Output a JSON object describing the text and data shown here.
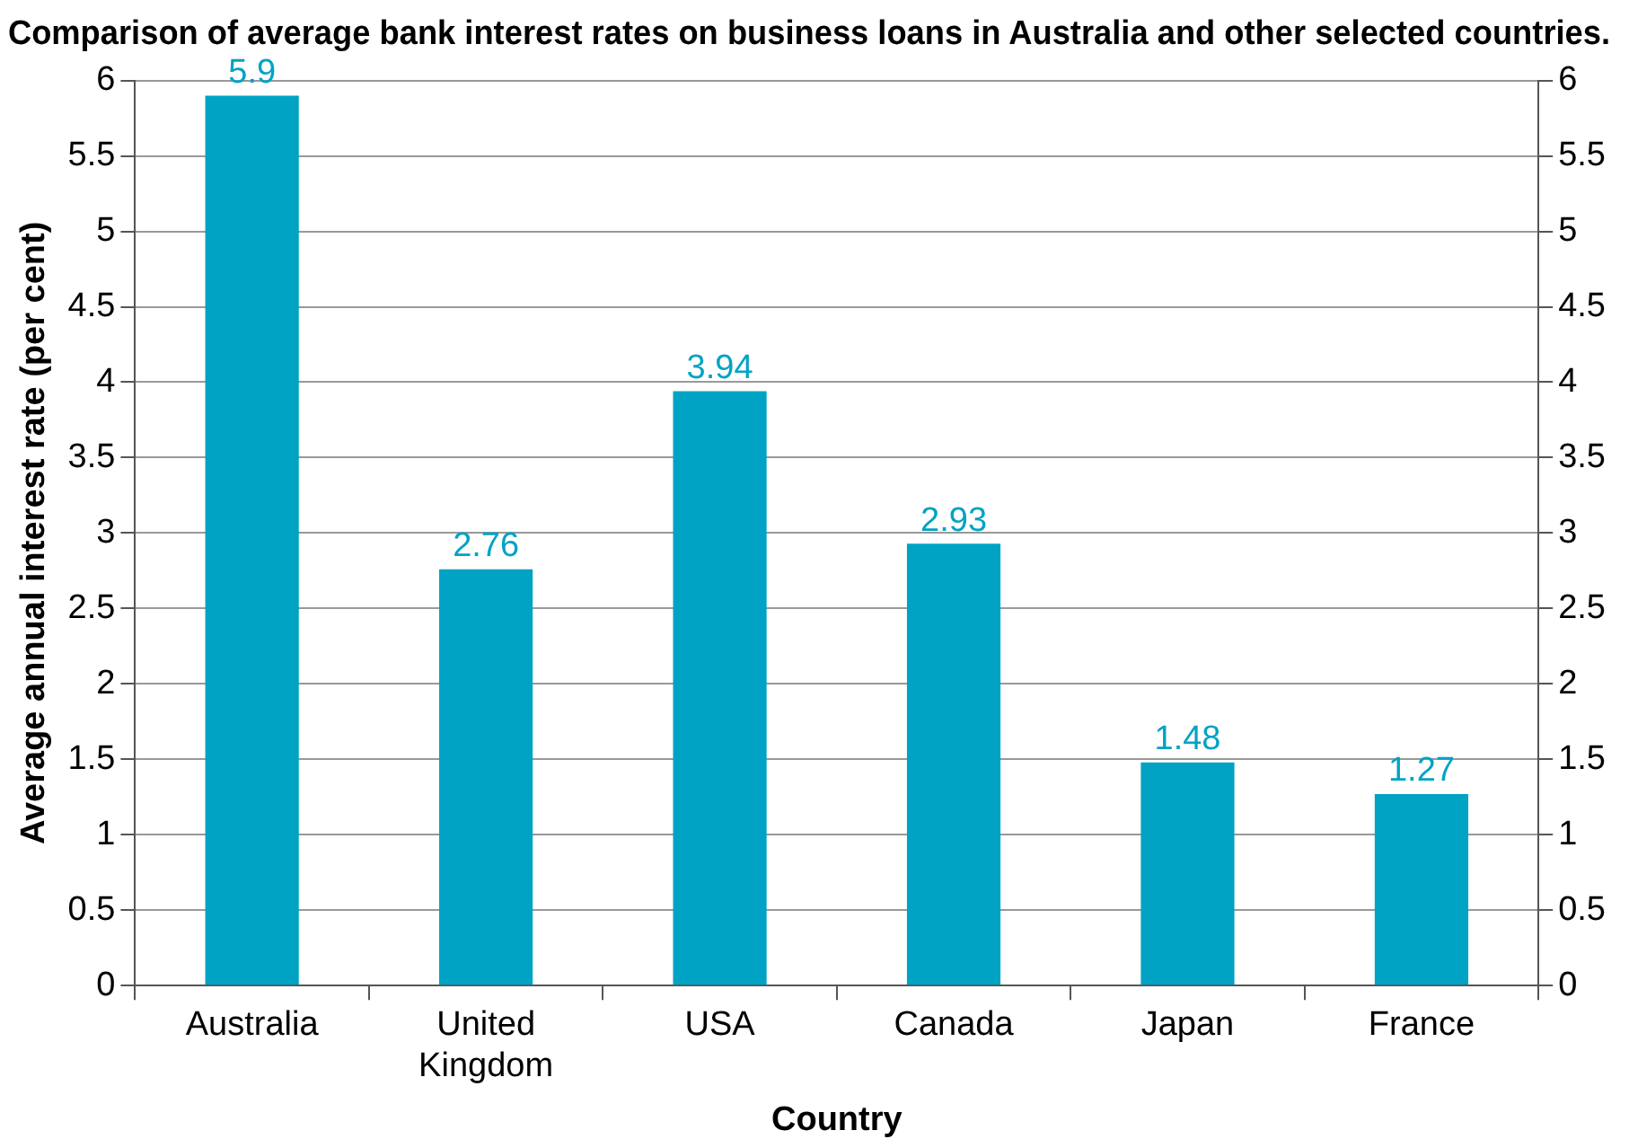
{
  "chart_data": {
    "type": "bar",
    "title": "Comparison of average bank interest rates on business loans in Australia and other selected countries.",
    "xlabel": "Country",
    "ylabel": "Average annual interest rate (per cent)",
    "categories": [
      "Australia",
      "United Kingdom",
      "USA",
      "Canada",
      "Japan",
      "France"
    ],
    "values": [
      5.9,
      2.76,
      3.94,
      2.93,
      1.48,
      1.27
    ],
    "color": "#00a3c4",
    "ylim": [
      0,
      6
    ],
    "yticks": [
      0,
      0.5,
      1,
      1.5,
      2,
      2.5,
      3,
      3.5,
      4,
      4.5,
      5,
      5.5,
      6
    ],
    "y2lim": [
      0,
      6
    ],
    "y2ticks": [
      0,
      0.5,
      1,
      1.5,
      2,
      2.5,
      3,
      3.5,
      4,
      4.5,
      5,
      5.5,
      6
    ],
    "grid": "y",
    "legend": false,
    "data_labels": true
  }
}
